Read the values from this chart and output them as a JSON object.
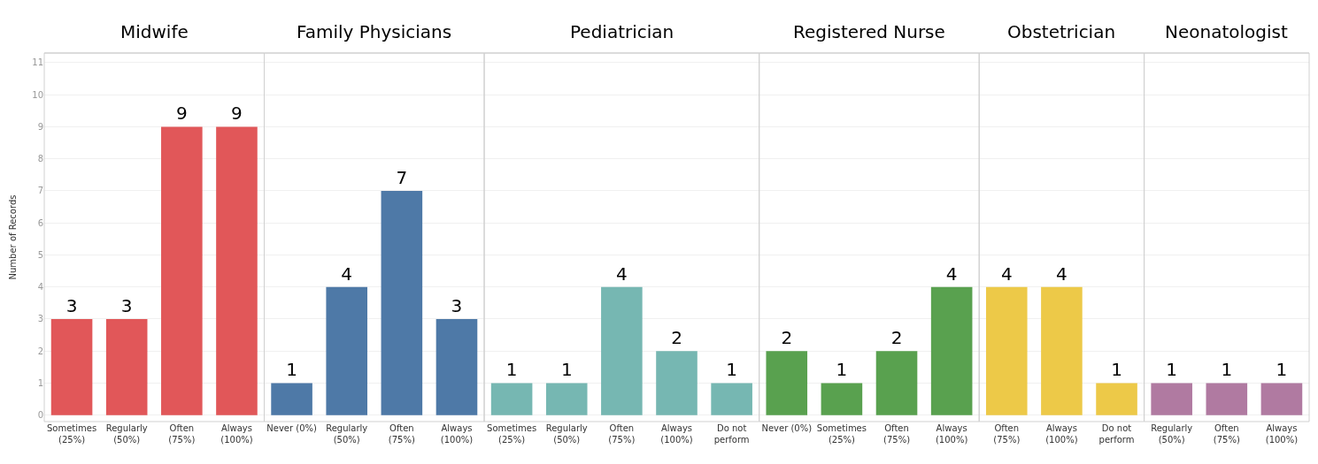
{
  "chart_data": [
    {
      "type": "bar",
      "title": "Midwife",
      "ylabel": "Number of Records",
      "categories": [
        "Sometimes (25%)",
        "Regularly (50%)",
        "Often (75%)",
        "Always (100%)"
      ],
      "values": [
        3,
        3,
        9,
        9
      ],
      "color": "#e15759",
      "ylim": [
        -0.2,
        11.3
      ],
      "yticks": [
        0,
        1,
        2,
        3,
        4,
        5,
        6,
        7,
        8,
        9,
        10,
        11
      ],
      "grid": "y",
      "data_labels": true
    },
    {
      "type": "bar",
      "title": "Family Physicians",
      "categories": [
        "Never (0%)",
        "Regularly (50%)",
        "Often (75%)",
        "Always (100%)"
      ],
      "values": [
        1,
        4,
        7,
        3
      ],
      "color": "#4e79a7",
      "ylim": [
        -0.2,
        11.3
      ],
      "yticks": [
        0,
        1,
        2,
        3,
        4,
        5,
        6,
        7,
        8,
        9,
        10,
        11
      ],
      "grid": "y",
      "data_labels": true,
      "tick_labels": "x"
    },
    {
      "type": "bar",
      "title": "Pediatrician",
      "categories": [
        "Sometimes (25%)",
        "Regularly (50%)",
        "Often (75%)",
        "Always (100%)",
        "Do not perform"
      ],
      "values": [
        1,
        1,
        4,
        2,
        1
      ],
      "color": "#76b7b2",
      "ylim": [
        -0.2,
        11.3
      ],
      "yticks": [
        0,
        1,
        2,
        3,
        4,
        5,
        6,
        7,
        8,
        9,
        10,
        11
      ],
      "grid": "y",
      "data_labels": true,
      "tick_labels": "x"
    },
    {
      "type": "bar",
      "title": "Registered Nurse",
      "categories": [
        "Never (0%)",
        "Sometimes (25%)",
        "Often (75%)",
        "Always (100%)"
      ],
      "values": [
        2,
        1,
        2,
        4
      ],
      "color": "#59a14f",
      "ylim": [
        -0.2,
        11.3
      ],
      "yticks": [
        0,
        1,
        2,
        3,
        4,
        5,
        6,
        7,
        8,
        9,
        10,
        11
      ],
      "grid": "y",
      "data_labels": true,
      "tick_labels": "x"
    },
    {
      "type": "bar",
      "title": "Obstetrician",
      "categories": [
        "Often (75%)",
        "Always (100%)",
        "Do not perform"
      ],
      "values": [
        4,
        4,
        1
      ],
      "color": "#edc948",
      "ylim": [
        -0.2,
        11.3
      ],
      "yticks": [
        0,
        1,
        2,
        3,
        4,
        5,
        6,
        7,
        8,
        9,
        10,
        11
      ],
      "grid": "y",
      "data_labels": true,
      "tick_labels": "x"
    },
    {
      "type": "bar",
      "title": "Neonatologist",
      "categories": [
        "Regularly (50%)",
        "Often (75%)",
        "Always (100%)"
      ],
      "values": [
        1,
        1,
        1
      ],
      "color": "#b07aa1",
      "ylim": [
        -0.2,
        11.3
      ],
      "yticks": [
        0,
        1,
        2,
        3,
        4,
        5,
        6,
        7,
        8,
        9,
        10,
        11
      ],
      "grid": "y",
      "data_labels": true,
      "tick_labels": "x"
    }
  ]
}
